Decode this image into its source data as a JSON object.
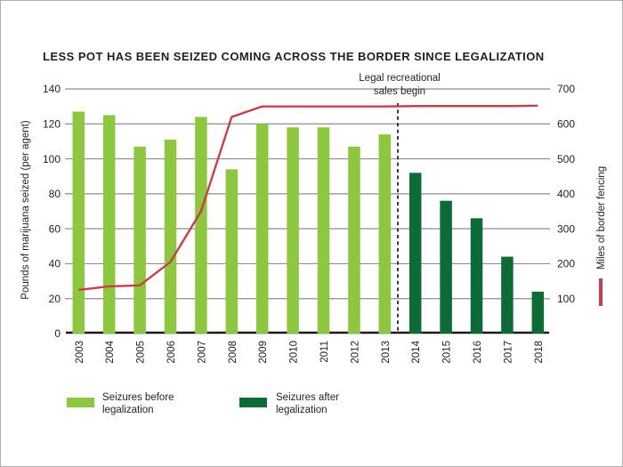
{
  "colors": {
    "light_green": "#8DC63F",
    "dark_green": "#0E6B38",
    "line_red": "#C5404A",
    "grid": "#8E8E8E",
    "axis": "#1A1A1A",
    "text": "#231F20",
    "frame_border": "#AEAEAE"
  },
  "legend": {
    "before": {
      "line1": "Seizures before",
      "line2": "legalization"
    },
    "after": {
      "line1": "Seizures after",
      "line2": "legalization"
    }
  },
  "chart_data": {
    "type": "bar",
    "title": "LESS POT HAS BEEN SEIZED COMING ACROSS THE BORDER SINCE LEGALIZATION",
    "categories": [
      "2003",
      "2004",
      "2005",
      "2006",
      "2007",
      "2008",
      "2009",
      "2010",
      "2011",
      "2012",
      "2013",
      "2014",
      "2015",
      "2016",
      "2017",
      "2018"
    ],
    "series": [
      {
        "name": "Seizures before legalization",
        "type": "bar",
        "yaxis": "left",
        "color": "#8DC63F",
        "values": [
          127,
          125,
          107,
          111,
          124,
          94,
          120,
          118,
          118,
          107,
          114,
          null,
          null,
          null,
          null,
          null
        ]
      },
      {
        "name": "Seizures after legalization",
        "type": "bar",
        "yaxis": "left",
        "color": "#0E6B38",
        "values": [
          null,
          null,
          null,
          null,
          null,
          null,
          null,
          null,
          null,
          null,
          null,
          92,
          76,
          66,
          44,
          24
        ]
      },
      {
        "name": "Miles of border fencing",
        "type": "line",
        "yaxis": "right",
        "color": "#C5404A",
        "values": [
          125,
          135,
          138,
          205,
          350,
          620,
          650,
          650,
          650,
          650,
          650,
          651,
          651,
          651,
          651,
          652
        ]
      }
    ],
    "ylabel_left": "Pounds of marijuana seized (per agent)",
    "ylabel_right": "Miles of border fencing",
    "ylim_left": [
      0,
      140
    ],
    "ylim_right": [
      0,
      700
    ],
    "yticks_left": [
      0,
      20,
      40,
      60,
      80,
      100,
      120,
      140
    ],
    "yticks_right": [
      100,
      200,
      300,
      400,
      500,
      600,
      700
    ],
    "grid": true,
    "legend_position": "bottom",
    "annotation": {
      "line1": "Legal recreational",
      "line2": "sales begin",
      "marker": "dashed-vertical-line",
      "between": [
        "2013",
        "2014"
      ]
    }
  }
}
